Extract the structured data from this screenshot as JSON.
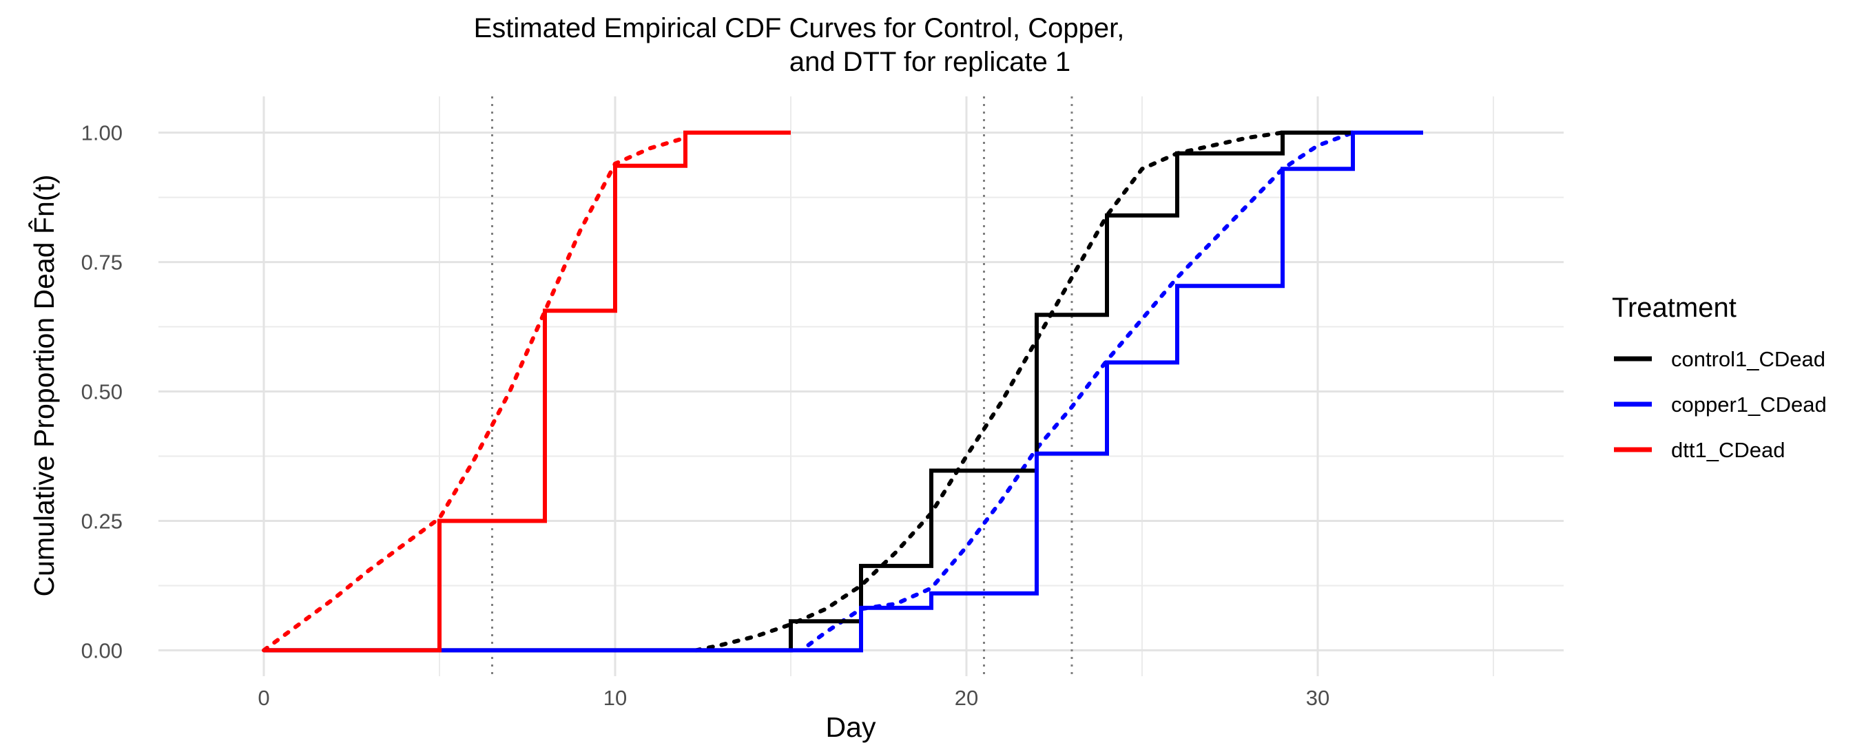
{
  "chart_data": {
    "type": "line",
    "title_lines": [
      "Estimated Empirical CDF Curves for Control, Copper,",
      "and DTT for replicate 1"
    ],
    "xlabel": "Day",
    "ylabel": "Cumulative Proportion Dead F̂n(t)",
    "xlim": [
      -3,
      37
    ],
    "ylim": [
      -0.05,
      1.07
    ],
    "x_ticks": [
      0,
      10,
      20,
      30
    ],
    "x_tick_labels": [
      "0",
      "10",
      "20",
      "30"
    ],
    "x_minor_gridlines": [
      5,
      15,
      25,
      35
    ],
    "y_ticks": [
      0,
      0.25,
      0.5,
      0.75,
      1
    ],
    "y_tick_labels": [
      "0.00",
      "0.25",
      "0.50",
      "0.75",
      "1.00"
    ],
    "grid": true,
    "vlines": [
      6.5,
      20.5,
      23
    ],
    "legend": {
      "title": "Treatment",
      "position": "right",
      "entries": [
        "control1_CDead",
        "copper1_CDead",
        "dtt1_CDead"
      ]
    },
    "series": [
      {
        "name": "control1_CDead",
        "color": "#000000",
        "step_x": [
          0,
          15,
          17,
          19,
          22,
          24,
          26,
          29,
          31
        ],
        "step_y": [
          0,
          0.056,
          0.163,
          0.347,
          0.648,
          0.84,
          0.96,
          1.0,
          1.0
        ],
        "fit_x": [
          12.3,
          13,
          14,
          15,
          16,
          17,
          18,
          19,
          20,
          21,
          22,
          23,
          24,
          25,
          26,
          27,
          28,
          29
        ],
        "fit_y": [
          0.0,
          0.01,
          0.027,
          0.05,
          0.08,
          0.125,
          0.19,
          0.265,
          0.375,
          0.48,
          0.6,
          0.72,
          0.84,
          0.93,
          0.96,
          0.975,
          0.99,
          1.0
        ]
      },
      {
        "name": "copper1_CDead",
        "color": "#0000ff",
        "step_x": [
          0,
          17,
          19,
          22,
          24,
          26,
          29,
          31,
          33
        ],
        "step_y": [
          0,
          0.082,
          0.11,
          0.38,
          0.556,
          0.704,
          0.93,
          1.0,
          1.0
        ],
        "fit_x": [
          15.5,
          16,
          17,
          18,
          19,
          20,
          21,
          22,
          23,
          24,
          25,
          26,
          27,
          28,
          29,
          30,
          31
        ],
        "fit_y": [
          0.01,
          0.035,
          0.08,
          0.09,
          0.12,
          0.2,
          0.29,
          0.39,
          0.47,
          0.56,
          0.64,
          0.72,
          0.79,
          0.86,
          0.93,
          0.975,
          1.0
        ]
      },
      {
        "name": "dtt1_CDead",
        "color": "#ff0000",
        "step_x": [
          0,
          5,
          8,
          10,
          12,
          15
        ],
        "step_y": [
          0,
          0.25,
          0.656,
          0.936,
          1.0,
          1.0
        ],
        "fit_x": [
          0,
          1,
          2,
          3,
          4,
          5,
          6,
          7,
          8,
          9,
          10,
          11,
          12
        ],
        "fit_y": [
          0,
          0.05,
          0.1,
          0.155,
          0.205,
          0.255,
          0.37,
          0.5,
          0.655,
          0.81,
          0.94,
          0.97,
          0.99
        ]
      }
    ]
  }
}
